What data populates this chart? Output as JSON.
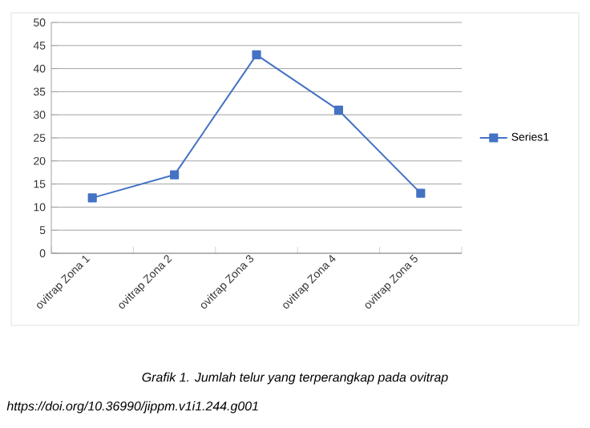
{
  "chart_data": {
    "type": "line",
    "categories": [
      "ovitrap Zona 1",
      "ovitrap Zona 2",
      "ovitrap Zona 3",
      "ovitrap Zona 4",
      "ovitrap Zona 5"
    ],
    "series": [
      {
        "name": "Series1",
        "color": "#4472c4",
        "values": [
          12,
          17,
          43,
          31,
          13
        ]
      }
    ],
    "ylim": [
      0,
      50
    ],
    "yticks": [
      0,
      5,
      10,
      15,
      20,
      25,
      30,
      35,
      40,
      45,
      50
    ],
    "grid": "y",
    "legend": "right",
    "marker": "square",
    "line_style": "solid",
    "annotations": [
      "Grafik 1. Jumlah telur yang terperangkap pada ovitrap",
      "https://doi.org/10.36990/jippm.v1i1.244.g001"
    ]
  }
}
